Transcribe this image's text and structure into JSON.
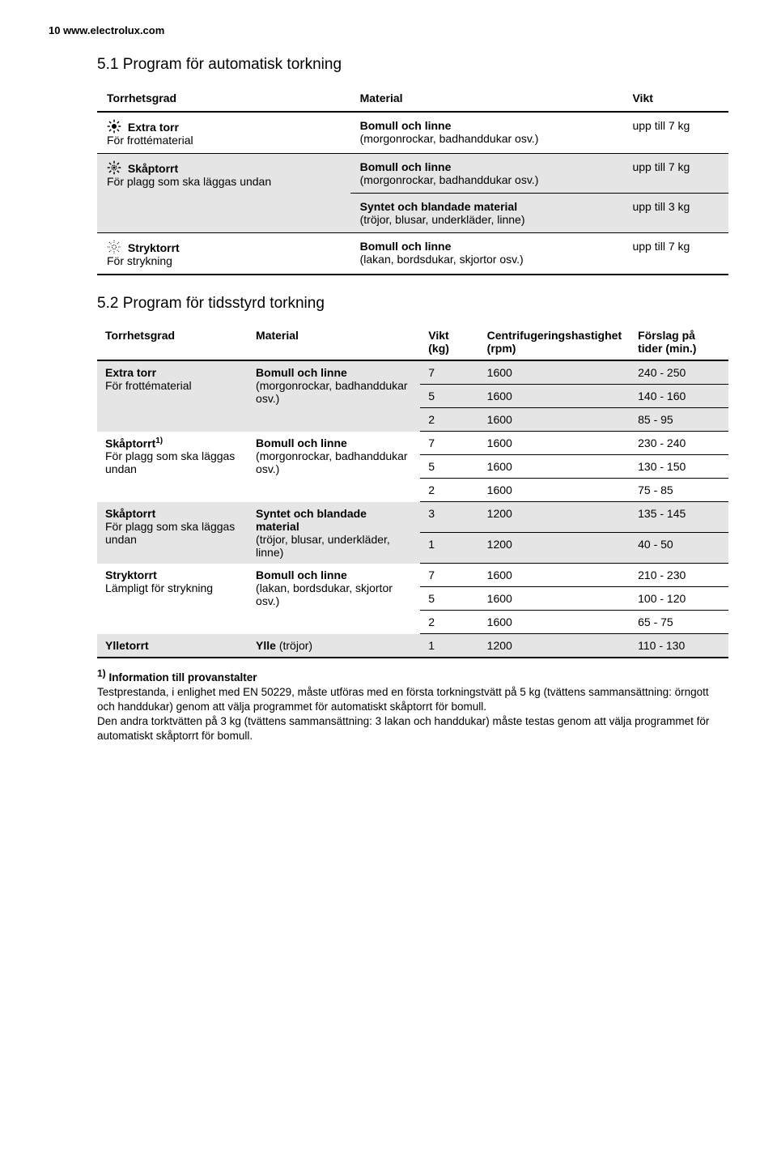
{
  "page_header": "10   www.electrolux.com",
  "section1_heading": "5.1 Program för automatisk torkning",
  "section2_heading": "5.2 Program för tidsstyrd torkning",
  "t1": {
    "headers": [
      "Torrhetsgrad",
      "Material",
      "Vikt"
    ],
    "rows": [
      {
        "icon": "sun-full",
        "name_bold": "Extra torr",
        "name_sub": "För frottématerial",
        "material_bold": "Bomull och linne",
        "material_sub": "(morgonrockar, badhanddukar osv.)",
        "vikt": "upp till 7 kg",
        "shaded": false
      },
      {
        "icon": "sun-half",
        "name_bold": "Skåptorrt",
        "name_sub": "För plagg som ska läggas undan",
        "multi": [
          {
            "material_bold": "Bomull och linne",
            "material_sub": "(morgonrockar, badhanddukar osv.)",
            "vikt": "upp till 7 kg"
          },
          {
            "material_bold": "Syntet och blandade material",
            "material_sub": "(tröjor, blusar, underkläder, linne)",
            "vikt": "upp till 3 kg"
          }
        ],
        "shaded": true
      },
      {
        "icon": "sun-outline",
        "name_bold": "Stryktorrt",
        "name_sub": "För strykning",
        "material_bold": "Bomull och linne",
        "material_sub": "(lakan, bordsdukar, skjortor osv.)",
        "vikt": "upp till 7 kg",
        "shaded": false
      }
    ]
  },
  "t2": {
    "headers": [
      "Torrhetsgrad",
      "Material",
      "Vikt (kg)",
      "Centrifugeringshastighet (rpm)",
      "Förslag på tider (min.)"
    ],
    "groups": [
      {
        "name_bold": "Extra torr",
        "name_sub": "För frottématerial",
        "material_bold": "Bomull och linne",
        "material_sub": "(morgonrockar, badhanddukar osv.)",
        "shaded": true,
        "data": [
          {
            "vikt": "7",
            "rpm": "1600",
            "tid": "240 - 250"
          },
          {
            "vikt": "5",
            "rpm": "1600",
            "tid": "140 - 160"
          },
          {
            "vikt": "2",
            "rpm": "1600",
            "tid": "85 - 95"
          }
        ]
      },
      {
        "name_bold": "Skåptorrt",
        "name_sup": "1)",
        "name_sub": "För plagg som ska läggas undan",
        "material_bold": "Bomull och linne",
        "material_sub": "(morgonrockar, badhanddukar osv.)",
        "shaded": false,
        "data": [
          {
            "vikt": "7",
            "rpm": "1600",
            "tid": "230 - 240"
          },
          {
            "vikt": "5",
            "rpm": "1600",
            "tid": "130 - 150"
          },
          {
            "vikt": "2",
            "rpm": "1600",
            "tid": "75 - 85"
          }
        ]
      },
      {
        "name_bold": "Skåptorrt",
        "name_sub": "För plagg som ska läggas undan",
        "material_bold": "Syntet och blandade material",
        "material_sub": "(tröjor, blusar, underkläder, linne)",
        "shaded": true,
        "data": [
          {
            "vikt": "3",
            "rpm": "1200",
            "tid": "135 - 145"
          },
          {
            "vikt": "1",
            "rpm": "1200",
            "tid": "40 - 50"
          }
        ]
      },
      {
        "name_bold": "Stryktorrt",
        "name_sub": "Lämpligt för strykning",
        "material_bold": "Bomull och linne",
        "material_sub": "(lakan, bordsdukar, skjortor osv.)",
        "shaded": false,
        "data": [
          {
            "vikt": "7",
            "rpm": "1600",
            "tid": "210 - 230"
          },
          {
            "vikt": "5",
            "rpm": "1600",
            "tid": "100 - 120"
          },
          {
            "vikt": "2",
            "rpm": "1600",
            "tid": "65 - 75"
          }
        ]
      },
      {
        "name_bold": "Ylletorrt",
        "material_bold": "Ylle",
        "material_sub": " (tröjor)",
        "shaded": true,
        "single": true,
        "data": [
          {
            "vikt": "1",
            "rpm": "1200",
            "tid": "110 - 130"
          }
        ]
      }
    ]
  },
  "footnote": {
    "lead": "1) Information till provanstalter",
    "p1": "Testprestanda, i enlighet med EN 50229, måste utföras med en första torkningstvätt på 5 kg (tvättens sammansättning: örngott och handdukar) genom att välja programmet för automatiskt skåptorrt för bomull.",
    "p2": "Den andra torktvätten på 3 kg (tvättens sammansättning: 3 lakan och handdukar) måste testas genom att välja programmet för automatiskt skåptorrt för bomull."
  },
  "colors": {
    "shaded_bg": "#e5e5e5",
    "text": "#000000",
    "bg": "#ffffff"
  }
}
